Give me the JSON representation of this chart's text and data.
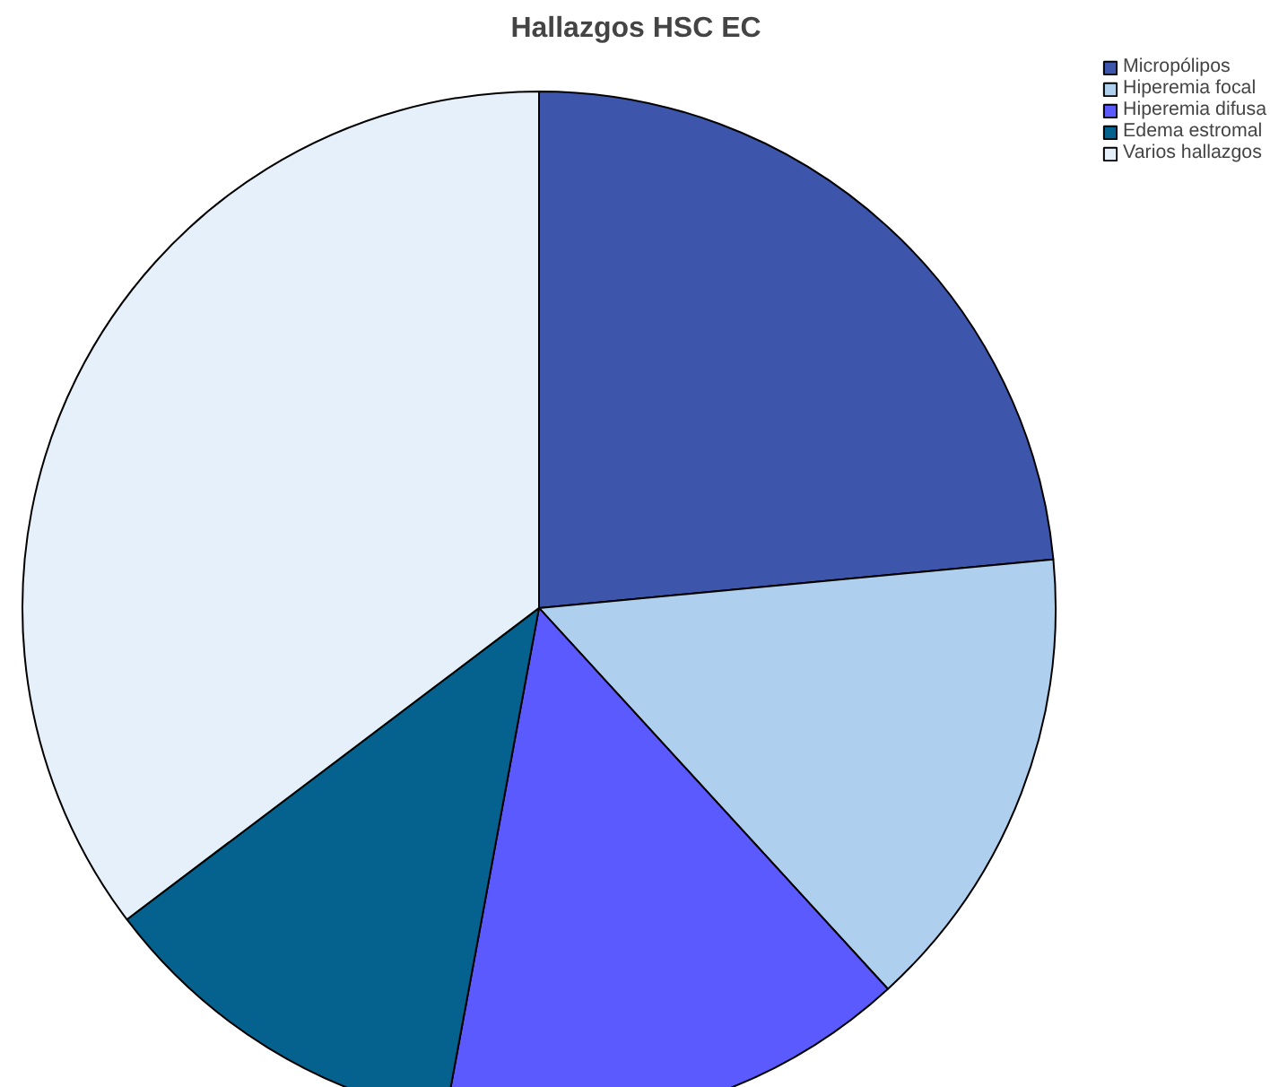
{
  "chart_data": {
    "type": "pie",
    "title": "Hallazgos HSC EC",
    "categories": [
      "Micropólipos",
      "Hiperemia focal",
      "Hiperemia difusa",
      "Edema estromal",
      "Varios hallazgos"
    ],
    "values": [
      23.5,
      14.7,
      14.7,
      11.8,
      35.3
    ],
    "colors": [
      "#3d55ab",
      "#aecfee",
      "#5a5aff",
      "#05628e",
      "#e6f0fb"
    ],
    "legend": "top right"
  }
}
